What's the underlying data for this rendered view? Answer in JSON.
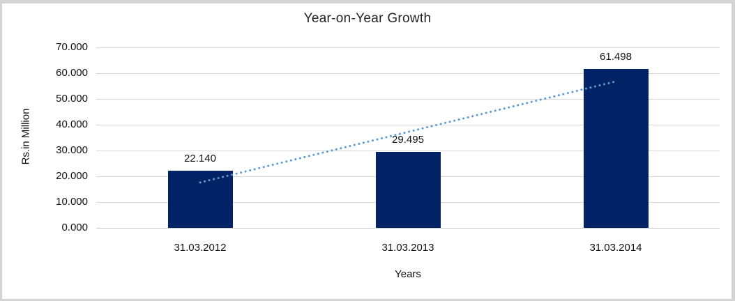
{
  "chart_data": {
    "type": "bar",
    "title": "Year-on-Year Growth",
    "categories": [
      "31.03.2012",
      "31.03.2013",
      "31.03.2014"
    ],
    "values": [
      22.14,
      29.495,
      61.498
    ],
    "data_labels": [
      "22.140",
      "29.495",
      "61.498"
    ],
    "xlabel": "Years",
    "ylabel": "Rs.in Million",
    "ylim": [
      0,
      70
    ],
    "ytick_step": 10,
    "ytick_labels": [
      "70.000",
      "60.000",
      "50.000",
      "40.000",
      "30.000",
      "20.000",
      "10.000",
      "0.000"
    ],
    "grid": true,
    "legend": false,
    "bar_color": "#022366",
    "gridline_color": "#d9d9d9",
    "frame_color": "#d4d4d4",
    "trendline": {
      "style": "dotted",
      "color": "#5b9bd5",
      "y_start": 17.6,
      "y_end": 56.8,
      "from_category": "31.03.2012",
      "to_category": "31.03.2014"
    }
  }
}
